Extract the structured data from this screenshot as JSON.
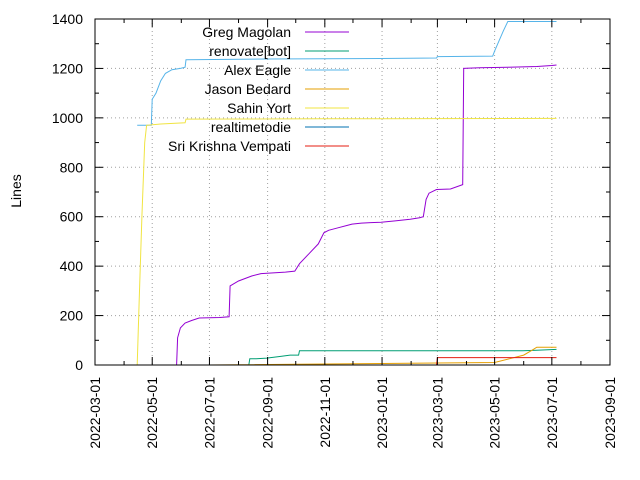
{
  "chart_data": {
    "type": "line",
    "title": "",
    "xlabel": "",
    "ylabel": "Lines",
    "xlim": [
      "2022-03-01",
      "2023-09-01"
    ],
    "ylim": [
      0,
      1400
    ],
    "x_ticks": [
      "2022-03-01",
      "2022-05-01",
      "2022-07-01",
      "2022-09-01",
      "2022-11-01",
      "2023-01-01",
      "2023-03-01",
      "2023-05-01",
      "2023-07-01",
      "2023-09-01"
    ],
    "y_ticks": [
      0,
      200,
      400,
      600,
      800,
      1000,
      1200,
      1400
    ],
    "grid": true,
    "legend_position": "top-left",
    "series": [
      {
        "name": "Greg Magolan",
        "color": "#9400d3",
        "points": [
          [
            "2022-05-27",
            0
          ],
          [
            "2022-05-28",
            110
          ],
          [
            "2022-05-31",
            150
          ],
          [
            "2022-06-05",
            170
          ],
          [
            "2022-06-12",
            180
          ],
          [
            "2022-06-20",
            190
          ],
          [
            "2022-07-12",
            192
          ],
          [
            "2022-07-22",
            195
          ],
          [
            "2022-07-23",
            320
          ],
          [
            "2022-08-01",
            340
          ],
          [
            "2022-08-15",
            360
          ],
          [
            "2022-08-25",
            370
          ],
          [
            "2022-09-20",
            376
          ],
          [
            "2022-09-30",
            380
          ],
          [
            "2022-10-05",
            410
          ],
          [
            "2022-10-15",
            450
          ],
          [
            "2022-10-25",
            490
          ],
          [
            "2022-10-31",
            535
          ],
          [
            "2022-11-05",
            545
          ],
          [
            "2022-11-15",
            555
          ],
          [
            "2022-11-25",
            565
          ],
          [
            "2022-11-30",
            570
          ],
          [
            "2022-12-10",
            574
          ],
          [
            "2022-12-20",
            576
          ],
          [
            "2022-12-31",
            578
          ],
          [
            "2023-01-15",
            583
          ],
          [
            "2023-01-31",
            590
          ],
          [
            "2023-02-10",
            596
          ],
          [
            "2023-02-14",
            600
          ],
          [
            "2023-02-17",
            670
          ],
          [
            "2023-02-20",
            695
          ],
          [
            "2023-02-28",
            710
          ],
          [
            "2023-03-15",
            712
          ],
          [
            "2023-03-28",
            730
          ],
          [
            "2023-03-29",
            1200
          ],
          [
            "2023-04-15",
            1203
          ],
          [
            "2023-05-15",
            1205
          ],
          [
            "2023-06-15",
            1208
          ],
          [
            "2023-07-01",
            1212
          ],
          [
            "2023-07-06",
            1214
          ]
        ]
      },
      {
        "name": "renovate[bot]",
        "color": "#009e73",
        "points": [
          [
            "2022-08-12",
            0
          ],
          [
            "2022-08-13",
            25
          ],
          [
            "2022-08-20",
            25
          ],
          [
            "2022-08-31",
            28
          ],
          [
            "2022-09-15",
            35
          ],
          [
            "2022-09-25",
            40
          ],
          [
            "2022-10-04",
            40
          ],
          [
            "2022-10-05",
            58
          ],
          [
            "2022-12-31",
            58
          ],
          [
            "2023-04-30",
            58
          ],
          [
            "2023-05-31",
            58
          ],
          [
            "2023-06-15",
            60
          ],
          [
            "2023-07-06",
            63
          ]
        ]
      },
      {
        "name": "Alex Eagle",
        "color": "#56b4e9",
        "points": [
          [
            "2022-04-15",
            970
          ],
          [
            "2022-04-30",
            970
          ],
          [
            "2022-05-01",
            1075
          ],
          [
            "2022-05-05",
            1100
          ],
          [
            "2022-05-10",
            1150
          ],
          [
            "2022-05-15",
            1180
          ],
          [
            "2022-05-22",
            1195
          ],
          [
            "2022-05-31",
            1200
          ],
          [
            "2022-06-05",
            1205
          ],
          [
            "2022-06-06",
            1235
          ],
          [
            "2022-08-31",
            1238
          ],
          [
            "2022-12-31",
            1240
          ],
          [
            "2023-02-28",
            1242
          ],
          [
            "2023-03-01",
            1248
          ],
          [
            "2023-04-29",
            1250
          ],
          [
            "2023-05-01",
            1270
          ],
          [
            "2023-05-10",
            1350
          ],
          [
            "2023-05-15",
            1390
          ],
          [
            "2023-07-06",
            1390
          ]
        ]
      },
      {
        "name": "Jason Bedard",
        "color": "#e69f00",
        "points": [
          [
            "2022-07-01",
            0
          ],
          [
            "2023-05-01",
            10
          ],
          [
            "2023-06-01",
            40
          ],
          [
            "2023-06-10",
            60
          ],
          [
            "2023-06-15",
            72
          ],
          [
            "2023-07-06",
            72
          ]
        ]
      },
      {
        "name": "Sahin Yort",
        "color": "#f0e442",
        "points": [
          [
            "2022-04-15",
            0
          ],
          [
            "2022-04-17",
            250
          ],
          [
            "2022-04-20",
            600
          ],
          [
            "2022-04-23",
            900
          ],
          [
            "2022-04-25",
            970
          ],
          [
            "2022-05-10",
            975
          ],
          [
            "2022-06-05",
            980
          ],
          [
            "2022-06-06",
            995
          ],
          [
            "2022-10-31",
            996
          ],
          [
            "2023-02-28",
            997
          ],
          [
            "2023-07-06",
            998
          ]
        ]
      },
      {
        "name": "realtimetodie",
        "color": "#0072b2",
        "points": []
      },
      {
        "name": "Sri Krishna Vempati",
        "color": "#e51e10",
        "points": [
          [
            "2023-02-28",
            0
          ],
          [
            "2023-03-01",
            30
          ],
          [
            "2023-07-06",
            30
          ]
        ]
      }
    ]
  }
}
